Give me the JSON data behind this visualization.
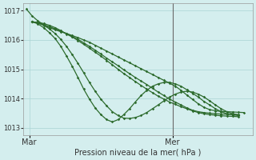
{
  "background_color": "#d4eeee",
  "grid_color": "#aad4d4",
  "line_color": "#2d6b2d",
  "xlabel": "Pression niveau de la mer( hPa )",
  "ylim": [
    1012.75,
    1017.25
  ],
  "yticks": [
    1013,
    1014,
    1015,
    1016,
    1017
  ],
  "xlim": [
    0,
    80
  ],
  "xtick_mar": 2,
  "xtick_mer": 52,
  "ver_line_x": 52,
  "line1_x": [
    1,
    3,
    5,
    7,
    9,
    11,
    13,
    15,
    17,
    19,
    21,
    23,
    25,
    27,
    29,
    31,
    33,
    35,
    37,
    39,
    41,
    43,
    45,
    47,
    49,
    51,
    53,
    55,
    57,
    59,
    61,
    63,
    65,
    67,
    69,
    71,
    73,
    75,
    77
  ],
  "line1_y": [
    1017.05,
    1016.82,
    1016.65,
    1016.52,
    1016.42,
    1016.35,
    1016.28,
    1016.22,
    1016.15,
    1016.08,
    1016.0,
    1015.92,
    1015.82,
    1015.72,
    1015.62,
    1015.52,
    1015.42,
    1015.32,
    1015.22,
    1015.12,
    1015.02,
    1014.92,
    1014.82,
    1014.72,
    1014.62,
    1014.52,
    1014.42,
    1014.28,
    1014.12,
    1013.97,
    1013.82,
    1013.7,
    1013.62,
    1013.58,
    1013.56,
    1013.55,
    1013.54,
    1013.53,
    1013.52
  ],
  "line2_x": [
    3,
    5,
    7,
    9,
    11,
    13,
    15,
    17,
    19,
    21,
    23,
    25,
    27,
    29,
    31,
    33,
    35,
    37,
    39,
    41,
    43,
    45,
    47,
    49,
    51,
    53,
    55,
    57,
    59,
    61,
    63,
    65,
    67,
    69,
    71,
    73,
    75
  ],
  "line2_y": [
    1016.62,
    1016.58,
    1016.52,
    1016.45,
    1016.38,
    1016.3,
    1016.22,
    1016.12,
    1016.02,
    1015.9,
    1015.78,
    1015.65,
    1015.52,
    1015.38,
    1015.25,
    1015.12,
    1014.98,
    1014.85,
    1014.72,
    1014.6,
    1014.48,
    1014.35,
    1014.22,
    1014.1,
    1013.98,
    1013.88,
    1013.78,
    1013.68,
    1013.6,
    1013.55,
    1013.52,
    1013.5,
    1013.48,
    1013.47,
    1013.46,
    1013.46,
    1013.45
  ],
  "line3_x": [
    3,
    5,
    7,
    9,
    11,
    13,
    15,
    17,
    19,
    21,
    23,
    25,
    27,
    29,
    31,
    33,
    35,
    37,
    39,
    41,
    43,
    45,
    47,
    49,
    51,
    53,
    55,
    57,
    59,
    61,
    63,
    65,
    67,
    69,
    71,
    73,
    75
  ],
  "line3_y": [
    1016.62,
    1016.55,
    1016.42,
    1016.25,
    1016.05,
    1015.78,
    1015.45,
    1015.1,
    1014.72,
    1014.32,
    1013.98,
    1013.68,
    1013.45,
    1013.28,
    1013.2,
    1013.28,
    1013.45,
    1013.65,
    1013.88,
    1014.1,
    1014.28,
    1014.42,
    1014.5,
    1014.55,
    1014.55,
    1014.5,
    1014.42,
    1014.3,
    1014.18,
    1014.05,
    1013.9,
    1013.78,
    1013.65,
    1013.55,
    1013.48,
    1013.44,
    1013.42
  ],
  "line4_x": [
    3,
    5,
    7,
    9,
    11,
    13,
    15,
    17,
    19,
    21,
    23,
    25,
    27,
    29,
    31,
    33,
    35,
    37,
    39,
    41,
    43,
    45,
    47,
    49,
    51,
    53,
    55,
    57,
    59,
    61,
    63,
    65,
    67,
    69,
    71,
    73,
    75
  ],
  "line4_y": [
    1016.62,
    1016.58,
    1016.5,
    1016.38,
    1016.22,
    1016.02,
    1015.78,
    1015.5,
    1015.2,
    1014.88,
    1014.55,
    1014.25,
    1013.98,
    1013.75,
    1013.55,
    1013.42,
    1013.33,
    1013.32,
    1013.35,
    1013.42,
    1013.52,
    1013.65,
    1013.78,
    1013.92,
    1014.05,
    1014.15,
    1014.22,
    1014.25,
    1014.22,
    1014.15,
    1014.05,
    1013.92,
    1013.78,
    1013.65,
    1013.55,
    1013.48,
    1013.44
  ],
  "line5_x": [
    3,
    5,
    7,
    9,
    11,
    13,
    15,
    17,
    19,
    21,
    23,
    25,
    27,
    29,
    31,
    33,
    35,
    37,
    39,
    41,
    43,
    45,
    47,
    49,
    51,
    53,
    55,
    57,
    59,
    61,
    63,
    65,
    67,
    69,
    71,
    73,
    75
  ],
  "line5_y": [
    1016.62,
    1016.6,
    1016.56,
    1016.5,
    1016.42,
    1016.32,
    1016.2,
    1016.1,
    1015.98,
    1015.85,
    1015.72,
    1015.58,
    1015.45,
    1015.3,
    1015.15,
    1015.0,
    1014.85,
    1014.72,
    1014.58,
    1014.45,
    1014.32,
    1014.2,
    1014.08,
    1013.98,
    1013.88,
    1013.8,
    1013.72,
    1013.65,
    1013.58,
    1013.52,
    1013.48,
    1013.45,
    1013.43,
    1013.41,
    1013.4,
    1013.39,
    1013.38
  ]
}
